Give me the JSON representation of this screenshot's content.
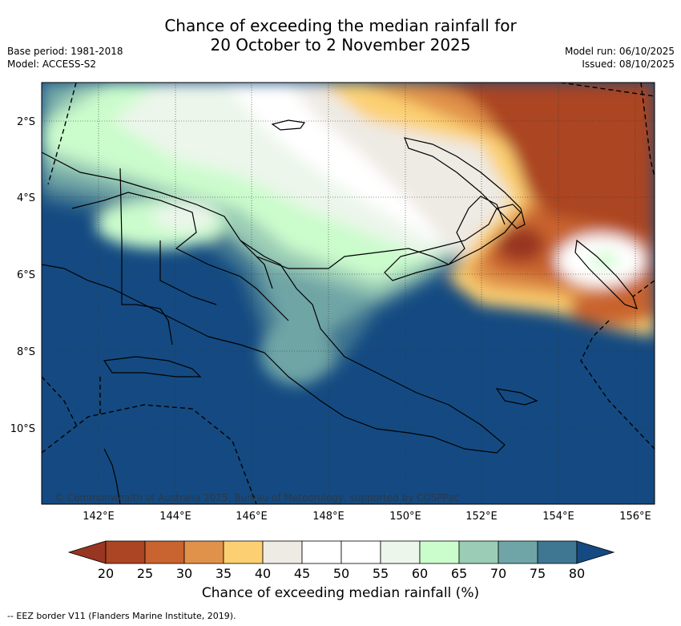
{
  "title": {
    "line1": "Chance of exceeding the median rainfall for",
    "line2": "20 October to 2 November 2025"
  },
  "meta": {
    "base_period": "Base period: 1981-2018",
    "model": "Model: ACCESS-S2",
    "model_run": "Model run: 06/10/2025",
    "issued": "Issued: 08/10/2025"
  },
  "map": {
    "lon_labels": [
      "142°E",
      "144°E",
      "146°E",
      "148°E",
      "150°E",
      "152°E",
      "154°E",
      "156°E"
    ],
    "lat_labels": [
      "2°S",
      "4°S",
      "6°S",
      "8°S",
      "10°S"
    ],
    "copyright": "© Commonwealth of Australia 2025, Bureau of Meteorology, supported by COSPPac"
  },
  "colorbar": {
    "ticks": [
      "20",
      "25",
      "30",
      "35",
      "40",
      "45",
      "50",
      "55",
      "60",
      "65",
      "70",
      "75",
      "80"
    ],
    "colors": [
      "#ab4523",
      "#c9632f",
      "#e0924a",
      "#fcd072",
      "#eeeae4",
      "#ffffff",
      "#ffffff",
      "#ecf6eb",
      "#cbfccc",
      "#9bcdb6",
      "#6fa5a6",
      "#3f7691"
    ],
    "under_color": "#983621",
    "over_color": "#144a81",
    "label": "Chance of exceeding median rainfall (%)"
  },
  "legend": {
    "eez": "-- EEZ border V11 (Flanders Marine Institute, 2019)."
  }
}
